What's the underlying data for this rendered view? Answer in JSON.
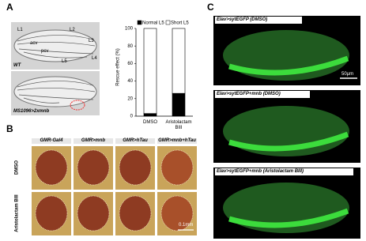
{
  "panels": [
    "A",
    "B",
    "C"
  ],
  "wing": {
    "veins": [
      "L1",
      "L2",
      "L3",
      "L4",
      "L5",
      "acv",
      "pcv"
    ],
    "captions": [
      "WT",
      "MS1096>2xmnb"
    ]
  },
  "chart_data": {
    "type": "bar",
    "stacked": true,
    "ylabel": "Rescue effect (%)",
    "categories": [
      "DMSO",
      "Aristolactam BIII"
    ],
    "series": [
      {
        "name": "Normal L5",
        "color": "#000000",
        "values": [
          3,
          26
        ]
      },
      {
        "name": "Short L5",
        "color": "#ffffff",
        "values": [
          97,
          74
        ]
      }
    ],
    "ylim": [
      0,
      100
    ],
    "yticks": [
      0,
      20,
      40,
      60,
      80,
      100
    ]
  },
  "eyes": {
    "columns": [
      "GMR-Gal4",
      "GMR>mnb",
      "GMR>hTau",
      "GMR>mnb+hTau"
    ],
    "rows": [
      "DMSO",
      "Aristolactam BIII"
    ],
    "scale": "0.1mm"
  },
  "embryos": {
    "captions": [
      "Elav>sytEGFP (DMSO)",
      "Elav>sytEGFP+mnb (DMSO)",
      "Elav>sytEGFP+mnb (Aristolactam BIII)"
    ],
    "scale": "50μm"
  }
}
